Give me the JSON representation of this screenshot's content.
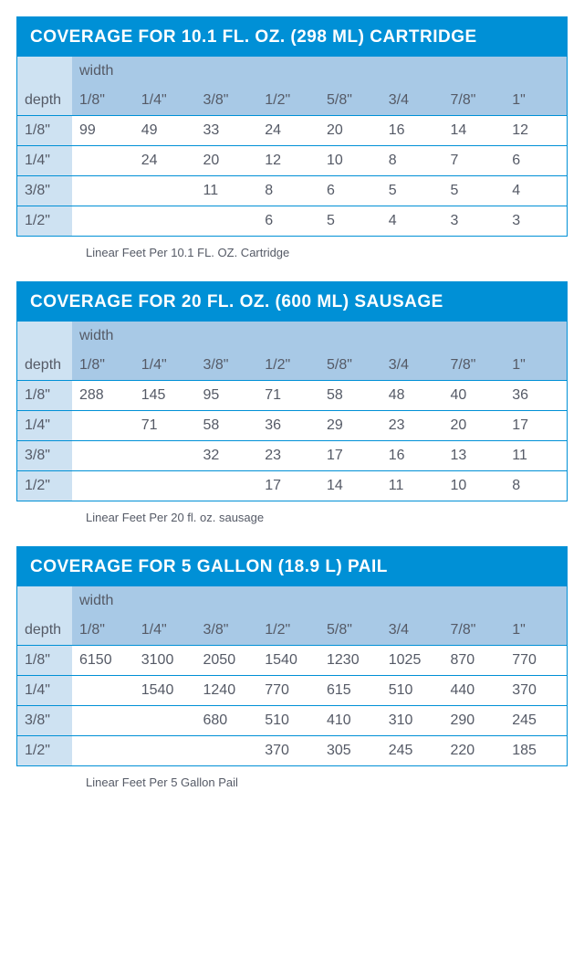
{
  "colors": {
    "primary": "#0090d6",
    "header_light": "#cee2f2",
    "header_med": "#a8c9e6",
    "text": "#555a66",
    "white": "#ffffff"
  },
  "tables": [
    {
      "title": "COVERAGE FOR 10.1 FL. OZ. (298 ML) CARTRIDGE",
      "width_label": "width",
      "depth_label": "depth",
      "columns": [
        "1/8\"",
        "1/4\"",
        "3/8\"",
        "1/2\"",
        "5/8\"",
        "3/4",
        "7/8\"",
        "1\""
      ],
      "rows": [
        {
          "depth": "1/8\"",
          "cells": [
            "99",
            "49",
            "33",
            "24",
            "20",
            "16",
            "14",
            "12"
          ]
        },
        {
          "depth": "1/4\"",
          "cells": [
            "",
            "24",
            "20",
            "12",
            "10",
            "8",
            "7",
            "6"
          ]
        },
        {
          "depth": "3/8\"",
          "cells": [
            "",
            "",
            "11",
            "8",
            "6",
            "5",
            "5",
            "4"
          ]
        },
        {
          "depth": "1/2\"",
          "cells": [
            "",
            "",
            "",
            "6",
            "5",
            "4",
            "3",
            "3"
          ]
        }
      ],
      "caption": "Linear Feet Per 10.1 FL. OZ. Cartridge"
    },
    {
      "title": "COVERAGE FOR 20 FL. OZ. (600 ML) SAUSAGE",
      "width_label": "width",
      "depth_label": "depth",
      "columns": [
        "1/8\"",
        "1/4\"",
        "3/8\"",
        "1/2\"",
        "5/8\"",
        "3/4",
        "7/8\"",
        "1\""
      ],
      "rows": [
        {
          "depth": "1/8\"",
          "cells": [
            "288",
            "145",
            "95",
            "71",
            "58",
            "48",
            "40",
            "36"
          ]
        },
        {
          "depth": "1/4\"",
          "cells": [
            "",
            "71",
            "58",
            "36",
            "29",
            "23",
            "20",
            "17"
          ]
        },
        {
          "depth": "3/8\"",
          "cells": [
            "",
            "",
            "32",
            "23",
            "17",
            "16",
            "13",
            "11"
          ]
        },
        {
          "depth": "1/2\"",
          "cells": [
            "",
            "",
            "",
            "17",
            "14",
            "11",
            "10",
            "8"
          ]
        }
      ],
      "caption": "Linear Feet Per 20 fl. oz. sausage"
    },
    {
      "title": "COVERAGE FOR 5 GALLON (18.9 L) PAIL",
      "width_label": "width",
      "depth_label": "depth",
      "columns": [
        "1/8\"",
        "1/4\"",
        "3/8\"",
        "1/2\"",
        "5/8\"",
        "3/4",
        "7/8\"",
        "1\""
      ],
      "rows": [
        {
          "depth": "1/8\"",
          "cells": [
            "6150",
            "3100",
            "2050",
            "1540",
            "1230",
            "1025",
            "870",
            "770"
          ]
        },
        {
          "depth": "1/4\"",
          "cells": [
            "",
            "1540",
            "1240",
            "770",
            "615",
            "510",
            "440",
            "370"
          ]
        },
        {
          "depth": "3/8\"",
          "cells": [
            "",
            "",
            "680",
            "510",
            "410",
            "310",
            "290",
            "245"
          ]
        },
        {
          "depth": "1/2\"",
          "cells": [
            "",
            "",
            "",
            "370",
            "305",
            "245",
            "220",
            "185"
          ]
        }
      ],
      "caption": "Linear Feet Per 5 Gallon Pail"
    }
  ]
}
